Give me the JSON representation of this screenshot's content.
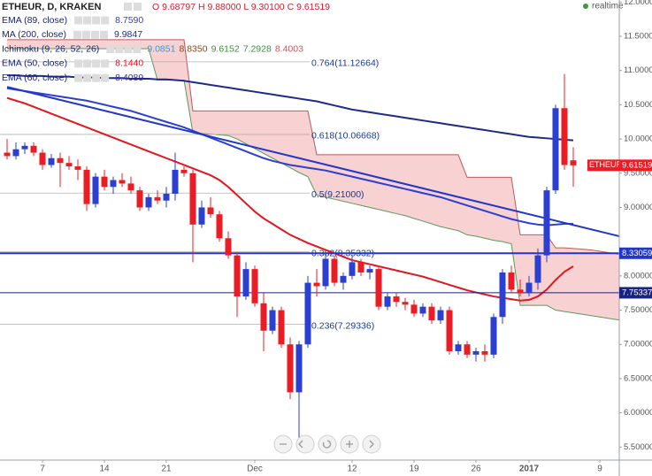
{
  "header": {
    "symbol": "ETHEUR, D, KRAKEN",
    "ohlc": "O 9.68797 H 9.88000 L 9.30100 C 9.61519",
    "status": "realtime"
  },
  "chart_data": {
    "type": "candlestick",
    "categories": [
      null,
      null,
      null,
      null,
      "7",
      null,
      null,
      null,
      null,
      null,
      null,
      "14",
      null,
      null,
      null,
      null,
      null,
      null,
      "21",
      null,
      null,
      null,
      null,
      null,
      null,
      null,
      null,
      null,
      "Dec",
      null,
      null,
      null,
      null,
      null,
      null,
      null,
      null,
      null,
      null,
      "12",
      null,
      null,
      null,
      null,
      null,
      null,
      "19",
      null,
      null,
      null,
      null,
      null,
      null,
      "26",
      null,
      null,
      null,
      null,
      null,
      "2017",
      null,
      null,
      null,
      null,
      null,
      null,
      null,
      "9",
      null,
      null,
      null,
      null,
      null,
      null
    ],
    "open": [
      9.8,
      9.75,
      9.85,
      9.9,
      9.8,
      9.62,
      9.72,
      9.65,
      9.6,
      9.55,
      9.05,
      9.45,
      9.3,
      9.4,
      9.35,
      9.25,
      9.0,
      9.15,
      9.1,
      9.2,
      9.55,
      9.5,
      8.75,
      9.0,
      8.9,
      8.55,
      8.3,
      7.7,
      8.1,
      7.6,
      7.2,
      7.5,
      7.0,
      6.3,
      7.0,
      7.9,
      7.85,
      8.25,
      7.9,
      8.0,
      8.2,
      8.05,
      8.1,
      7.55,
      7.7,
      7.62,
      7.58,
      7.45,
      7.55,
      7.35,
      7.5,
      6.9,
      7.0,
      6.85,
      6.9,
      6.85,
      7.4,
      8.05,
      7.8,
      7.75,
      7.9,
      8.3,
      9.25,
      10.45,
      9.68797,
      null,
      null,
      null,
      null,
      null,
      null,
      null,
      null,
      null
    ],
    "high": [
      10.0,
      9.95,
      9.95,
      9.95,
      9.85,
      9.78,
      9.8,
      9.75,
      9.7,
      9.6,
      9.5,
      9.55,
      9.45,
      9.5,
      9.45,
      9.3,
      9.2,
      9.25,
      9.3,
      9.8,
      9.6,
      9.55,
      9.1,
      9.15,
      8.95,
      8.65,
      8.35,
      8.2,
      8.15,
      7.75,
      7.55,
      7.55,
      7.1,
      7.05,
      8.0,
      8.1,
      8.35,
      8.3,
      8.05,
      8.3,
      8.25,
      8.15,
      8.15,
      7.75,
      7.75,
      7.68,
      7.65,
      7.6,
      7.6,
      7.55,
      7.55,
      7.05,
      7.05,
      6.95,
      7.0,
      7.45,
      8.1,
      8.15,
      7.95,
      8.0,
      8.4,
      9.3,
      10.5,
      10.95,
      9.88,
      null,
      null,
      null,
      null,
      null,
      null,
      null,
      null,
      null
    ],
    "low": [
      9.7,
      9.7,
      9.78,
      9.75,
      9.55,
      9.58,
      9.3,
      9.55,
      9.4,
      8.95,
      9.0,
      9.25,
      9.2,
      9.3,
      9.2,
      8.95,
      8.95,
      9.05,
      9.0,
      9.1,
      9.45,
      8.2,
      8.7,
      8.85,
      8.5,
      8.25,
      7.4,
      7.65,
      7.55,
      6.9,
      7.15,
      6.95,
      6.2,
      5.6,
      6.95,
      7.7,
      7.8,
      7.85,
      7.8,
      7.95,
      8.0,
      7.95,
      7.5,
      7.5,
      7.55,
      7.5,
      7.4,
      7.4,
      7.3,
      7.3,
      6.85,
      6.85,
      6.8,
      6.75,
      6.75,
      6.8,
      7.3,
      7.75,
      7.7,
      7.7,
      7.8,
      8.2,
      9.2,
      9.55,
      9.301,
      null,
      null,
      null,
      null,
      null,
      null,
      null,
      null,
      null
    ],
    "close": [
      9.75,
      9.85,
      9.9,
      9.8,
      9.62,
      9.72,
      9.65,
      9.6,
      9.55,
      9.05,
      9.45,
      9.3,
      9.4,
      9.35,
      9.25,
      9.0,
      9.15,
      9.1,
      9.2,
      9.55,
      9.5,
      8.75,
      9.0,
      8.9,
      8.55,
      8.3,
      7.7,
      8.1,
      7.6,
      7.2,
      7.5,
      7.0,
      6.3,
      7.0,
      7.9,
      7.85,
      8.25,
      7.9,
      8.0,
      8.2,
      8.05,
      8.1,
      7.55,
      7.7,
      7.62,
      7.58,
      7.45,
      7.55,
      7.35,
      7.5,
      6.9,
      7.0,
      6.85,
      6.9,
      6.85,
      7.4,
      8.05,
      7.8,
      7.75,
      7.9,
      8.3,
      9.25,
      10.45,
      9.62,
      9.61519,
      null,
      null,
      null,
      null,
      null,
      null,
      null,
      null,
      null
    ],
    "up_color": "#2b3fd1",
    "down_color": "#ec1c24",
    "ylim": [
      5.31,
      12.03
    ],
    "yticks": [
      {
        "value": 5.5,
        "label": "5.50000"
      },
      {
        "value": 6,
        "label": "6.00000"
      },
      {
        "value": 6.5,
        "label": "6.50000"
      },
      {
        "value": 7,
        "label": "7.00000"
      },
      {
        "value": 7.5,
        "label": "7.50000"
      },
      {
        "value": 8,
        "label": "8.00000"
      },
      {
        "value": 9,
        "label": "9.00000"
      },
      {
        "value": 9.5,
        "label": "9.50000"
      },
      {
        "value": 10,
        "label": "10.00000"
      },
      {
        "value": 10.5,
        "label": "10.50000"
      },
      {
        "value": 11,
        "label": "11.00000"
      },
      {
        "value": 11.5,
        "label": "11.50000"
      },
      {
        "value": 12,
        "label": "12.00000"
      }
    ],
    "grid": false,
    "overlays": [
      {
        "name": "EMA (89, close)",
        "last": "8.7590",
        "color": "#2b3fd1",
        "width": 2,
        "values": [
          10.74,
          10.72,
          10.7,
          10.68,
          10.66,
          10.64,
          10.62,
          10.6,
          10.58,
          10.56,
          10.53,
          10.5,
          10.47,
          10.44,
          10.41,
          10.37,
          10.33,
          10.29,
          10.25,
          10.21,
          10.17,
          10.12,
          10.07,
          10.02,
          9.97,
          9.92,
          9.87,
          9.82,
          9.77,
          9.72,
          9.68,
          9.65,
          9.62,
          9.6,
          9.58,
          9.56,
          9.54,
          9.51,
          9.48,
          9.45,
          9.42,
          9.39,
          9.36,
          9.33,
          9.3,
          9.27,
          9.24,
          9.21,
          9.18,
          9.15,
          9.11,
          9.07,
          9.03,
          8.99,
          8.95,
          8.91,
          8.87,
          8.83,
          8.8,
          8.77,
          8.75,
          8.74,
          8.75,
          8.76,
          8.76,
          null,
          null,
          null,
          null,
          null,
          null,
          null,
          null,
          null
        ]
      },
      {
        "name": "MA (200, close)",
        "last": "9.9847",
        "color": "#1f2a8a",
        "width": 2,
        "values": [
          10.93,
          10.93,
          10.92,
          10.92,
          10.92,
          10.91,
          10.91,
          10.91,
          10.9,
          10.9,
          10.9,
          10.89,
          10.89,
          10.89,
          10.88,
          10.88,
          10.88,
          10.87,
          10.87,
          10.86,
          10.85,
          10.83,
          10.81,
          10.79,
          10.77,
          10.75,
          10.73,
          10.71,
          10.69,
          10.67,
          10.65,
          10.63,
          10.61,
          10.59,
          10.57,
          10.55,
          10.52,
          10.49,
          10.46,
          10.43,
          10.41,
          10.39,
          10.37,
          10.35,
          10.33,
          10.31,
          10.29,
          10.27,
          10.25,
          10.23,
          10.21,
          10.19,
          10.17,
          10.15,
          10.13,
          10.11,
          10.09,
          10.07,
          10.05,
          10.03,
          10.02,
          10.01,
          10.0,
          9.99,
          9.98,
          null,
          null,
          null,
          null,
          null,
          null,
          null,
          null,
          null
        ]
      },
      {
        "name": "EMA (50, close)",
        "last": "8.1440",
        "color": "#e3161e",
        "width": 2,
        "values": [
          10.6,
          10.56,
          10.52,
          10.47,
          10.42,
          10.37,
          10.32,
          10.27,
          10.22,
          10.17,
          10.12,
          10.07,
          10.02,
          9.97,
          9.92,
          9.87,
          9.82,
          9.77,
          9.72,
          9.67,
          9.62,
          9.57,
          9.52,
          9.47,
          9.4,
          9.3,
          9.18,
          9.06,
          8.94,
          8.84,
          8.76,
          8.68,
          8.6,
          8.54,
          8.48,
          8.43,
          8.38,
          8.33,
          8.28,
          8.23,
          8.2,
          8.17,
          8.14,
          8.11,
          8.08,
          8.05,
          8.02,
          7.99,
          7.95,
          7.91,
          7.87,
          7.83,
          7.79,
          7.76,
          7.73,
          7.7,
          7.68,
          7.66,
          7.64,
          7.65,
          7.7,
          7.8,
          7.94,
          8.06,
          8.14,
          null,
          null,
          null,
          null,
          null,
          null,
          null,
          null,
          null
        ]
      },
      {
        "name": "EMA (60, close)",
        "last": "8.4089",
        "color": "#3a2e8c"
      }
    ],
    "ichimoku": {
      "name": "Ichimoku (9, 26, 52, 26)",
      "last": [
        "9.0851",
        "8.8350",
        "9.6152",
        "7.2928",
        "8.4003"
      ],
      "last_colors": [
        "#2a9fd8",
        "#8b4513",
        "#3c8f3c",
        "#3c8f3c",
        "#c0585b"
      ],
      "fill": "#f7c9cb",
      "color_a": "#5a9a5a",
      "color_b": "#c0585b",
      "span_b": [
        11.45,
        11.45,
        11.45,
        11.45,
        11.45,
        11.45,
        11.45,
        11.45,
        11.45,
        11.45,
        11.45,
        11.45,
        11.45,
        11.45,
        11.45,
        11.45,
        11.45,
        11.45,
        11.45,
        11.45,
        11.45,
        10.41,
        10.41,
        10.41,
        10.41,
        10.41,
        10.41,
        10.41,
        10.41,
        10.41,
        10.41,
        10.41,
        10.41,
        10.41,
        10.41,
        9.77,
        9.77,
        9.77,
        9.77,
        9.77,
        9.77,
        9.77,
        9.77,
        9.77,
        9.77,
        9.77,
        9.77,
        9.77,
        9.77,
        9.77,
        9.77,
        9.77,
        9.44,
        9.44,
        9.44,
        9.44,
        9.44,
        9.44,
        8.6,
        8.6,
        8.6,
        8.6,
        8.41,
        8.41,
        8.4,
        8.39,
        8.38,
        8.36,
        8.34,
        8.32,
        8.31,
        8.3,
        8.29,
        8.28
      ],
      "span_a": [
        11.32,
        11.32,
        11.32,
        11.32,
        11.32,
        11.32,
        11.32,
        11.32,
        11.32,
        11.32,
        11.32,
        11.32,
        11.32,
        11.32,
        11.32,
        11.32,
        11.32,
        10.86,
        10.86,
        10.86,
        10.86,
        10.09,
        10.08,
        10.07,
        10.06,
        10.05,
        10.0,
        9.93,
        9.86,
        9.79,
        9.72,
        9.65,
        9.58,
        9.51,
        9.45,
        9.18,
        9.15,
        9.12,
        9.09,
        9.06,
        9.03,
        9.0,
        8.97,
        8.94,
        8.91,
        8.88,
        8.84,
        8.8,
        8.76,
        8.72,
        8.69,
        8.66,
        8.6,
        8.58,
        8.55,
        8.52,
        8.5,
        8.47,
        7.57,
        7.57,
        7.57,
        7.57,
        7.5,
        7.48,
        7.46,
        7.44,
        7.42,
        7.4,
        7.38,
        7.36,
        7.35,
        7.33,
        7.32,
        7.31
      ]
    },
    "trendline": {
      "values": [
        10.76,
        8.46
      ],
      "color": "#2236c8"
    },
    "hlines": [
      {
        "value": 8.33059,
        "color": "#2236c8",
        "width": 2
      },
      {
        "value": 7.75337,
        "color": "#1a237e",
        "width": 1
      }
    ],
    "fibonacci": [
      {
        "label": "0.764(11.12664)",
        "value": 11.12664
      },
      {
        "label": "0.618(10.06668)",
        "value": 10.06668
      },
      {
        "label": "0.5(9.21000)",
        "value": 9.21
      },
      {
        "label": "0.382(8.35332)",
        "value": 8.35332
      },
      {
        "label": "0.236(7.29336)",
        "value": 7.29336
      }
    ],
    "price_tag": "ETHEUR"
  }
}
